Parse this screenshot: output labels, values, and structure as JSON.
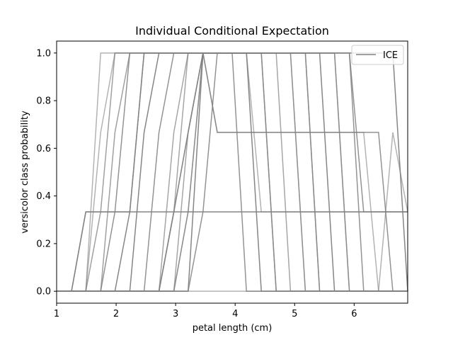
{
  "chart_data": {
    "type": "line",
    "title": "Individual Conditional Expectation",
    "xlabel": "petal length (cm)",
    "ylabel": "versicolor class probability",
    "xlim": [
      1.0,
      6.9
    ],
    "ylim": [
      -0.05,
      1.05
    ],
    "xticks": [
      1,
      2,
      3,
      4,
      5,
      6
    ],
    "xtick_labels": [
      "1",
      "2",
      "3",
      "4",
      "5",
      "6"
    ],
    "yticks": [
      0.0,
      0.2,
      0.4,
      0.6,
      0.8,
      1.0
    ],
    "ytick_labels": [
      "0.0",
      "0.2",
      "0.4",
      "0.6",
      "0.8",
      "1.0"
    ],
    "grid": false,
    "legend": {
      "position": "top-right",
      "entries": [
        "ICE"
      ]
    },
    "line_color": "#808080",
    "x": [
      1.0,
      1.25,
      1.49,
      1.74,
      1.98,
      2.23,
      2.47,
      2.72,
      2.97,
      3.21,
      3.46,
      3.7,
      3.95,
      4.19,
      4.44,
      4.69,
      4.93,
      5.18,
      5.42,
      5.67,
      5.92,
      6.16,
      6.41,
      6.65,
      6.9
    ],
    "series": [
      {
        "values": [
          0,
          0,
          0,
          1,
          1,
          1,
          1,
          1,
          1,
          1,
          1,
          1,
          1,
          1,
          0.3333,
          0.3333,
          0.3333,
          0.3333,
          0.3333,
          0.3333,
          0.3333,
          0.3333,
          0.3333,
          0.3333,
          0.3333
        ]
      },
      {
        "values": [
          0,
          0,
          0,
          0,
          0,
          0,
          0,
          0,
          0,
          0,
          0.3333,
          1,
          1,
          0,
          0,
          0,
          0,
          0,
          0,
          0,
          0,
          0,
          0,
          0,
          0
        ]
      },
      {
        "values": [
          0,
          0,
          0.3333,
          0.3333,
          0.3333,
          0.3333,
          1,
          1,
          1,
          1,
          1,
          1,
          1,
          1,
          1,
          1,
          1,
          1,
          0,
          0,
          0,
          0,
          0,
          0,
          0
        ]
      },
      {
        "values": [
          0,
          0,
          0,
          0,
          0,
          0,
          0.6667,
          1,
          1,
          1,
          1,
          1,
          1,
          1,
          1,
          1,
          1,
          1,
          1,
          0,
          0,
          0,
          0,
          0,
          0
        ]
      },
      {
        "values": [
          0,
          0,
          0,
          0,
          0,
          0,
          0,
          0,
          0.6667,
          1,
          1,
          1,
          1,
          1,
          1,
          1,
          0,
          0,
          0,
          0,
          0,
          0,
          0,
          0,
          0
        ]
      },
      {
        "values": [
          0,
          0,
          0,
          0.6667,
          1,
          1,
          1,
          1,
          1,
          1,
          1,
          1,
          1,
          1,
          1,
          1,
          1,
          0,
          0,
          0,
          0,
          0,
          0,
          0,
          0
        ]
      },
      {
        "values": [
          0,
          0,
          0,
          0,
          0,
          0,
          0,
          0,
          0.3333,
          0.6667,
          1,
          0.6667,
          0.6667,
          0.6667,
          0.6667,
          0.6667,
          0.6667,
          0.6667,
          0.6667,
          0.6667,
          0.6667,
          0.6667,
          0.6667,
          0,
          0
        ]
      },
      {
        "values": [
          0,
          0,
          0,
          0,
          0,
          0,
          0,
          0,
          0,
          0.3333,
          1,
          1,
          1,
          1,
          1,
          0,
          0,
          0,
          0,
          0,
          0,
          0,
          0,
          0,
          0
        ]
      },
      {
        "values": [
          0,
          0,
          0.3333,
          0.3333,
          0.3333,
          0.3333,
          0.3333,
          0.3333,
          0.3333,
          0.3333,
          0.3333,
          0.3333,
          0.3333,
          0.3333,
          0.3333,
          0.3333,
          0.3333,
          0.3333,
          0.3333,
          0.3333,
          0.3333,
          0.3333,
          0.3333,
          0.3333,
          0.3333
        ]
      },
      {
        "values": [
          0,
          0,
          0,
          0,
          0,
          0,
          0,
          0,
          0.3333,
          1,
          1,
          1,
          1,
          1,
          1,
          1,
          1,
          0,
          0,
          0,
          0,
          0,
          0,
          0,
          0
        ]
      },
      {
        "values": [
          0,
          0,
          0,
          0,
          0,
          0,
          0,
          0,
          0,
          0,
          0,
          0,
          0,
          0,
          0,
          0,
          0,
          0,
          0,
          0,
          0,
          0,
          0,
          0.6667,
          0.3333
        ]
      },
      {
        "values": [
          0,
          0,
          0,
          0,
          0,
          0,
          0,
          0.6667,
          1,
          1,
          1,
          1,
          1,
          1,
          1,
          1,
          1,
          1,
          1,
          1,
          1,
          0,
          0,
          0,
          0
        ]
      },
      {
        "values": [
          0,
          0,
          0,
          0,
          0.6667,
          1,
          1,
          1,
          1,
          1,
          1,
          1,
          1,
          1,
          1,
          1,
          1,
          1,
          0,
          0,
          0,
          0,
          0,
          0,
          0
        ]
      },
      {
        "values": [
          0,
          0,
          0,
          0,
          0,
          0.3333,
          1,
          1,
          1,
          1,
          1,
          1,
          1,
          1,
          0,
          0,
          0,
          0,
          0,
          0,
          0,
          0,
          0,
          0,
          0
        ]
      },
      {
        "values": [
          0,
          0,
          0,
          0,
          0,
          0,
          0,
          0,
          0.3333,
          0.6667,
          1,
          1,
          1,
          1,
          1,
          1,
          1,
          1,
          1,
          1,
          0,
          0,
          0,
          0,
          0
        ]
      },
      {
        "values": [
          0,
          0,
          0,
          0,
          0,
          0,
          0,
          0,
          0,
          0.3333,
          1,
          0.6667,
          0.6667,
          0.6667,
          0.6667,
          0.6667,
          0.6667,
          0.6667,
          0.6667,
          0.6667,
          0.6667,
          0.6667,
          0,
          0,
          0
        ]
      },
      {
        "values": [
          0,
          0,
          0,
          0,
          0.3333,
          1,
          1,
          1,
          1,
          1,
          1,
          1,
          1,
          1,
          1,
          1,
          1,
          1,
          1,
          1,
          1,
          0.3333,
          0.3333,
          0.3333,
          0.3333
        ]
      },
      {
        "values": [
          0,
          0,
          0,
          0.3333,
          1,
          1,
          1,
          1,
          1,
          1,
          1,
          1,
          1,
          1,
          1,
          0,
          0,
          0,
          0,
          0,
          0,
          0,
          0,
          0,
          0
        ]
      },
      {
        "values": [
          0,
          0,
          0,
          0,
          0,
          0,
          0,
          0,
          0,
          0,
          1,
          1,
          1,
          1,
          1,
          1,
          1,
          1,
          1,
          1,
          1,
          1,
          1,
          1,
          0
        ]
      },
      {
        "values": [
          0,
          0,
          0,
          0,
          0,
          0,
          0,
          0,
          0,
          0.6667,
          1,
          1,
          1,
          1,
          1,
          1,
          1,
          1,
          1,
          1,
          0,
          0,
          0,
          0,
          0
        ]
      }
    ]
  }
}
